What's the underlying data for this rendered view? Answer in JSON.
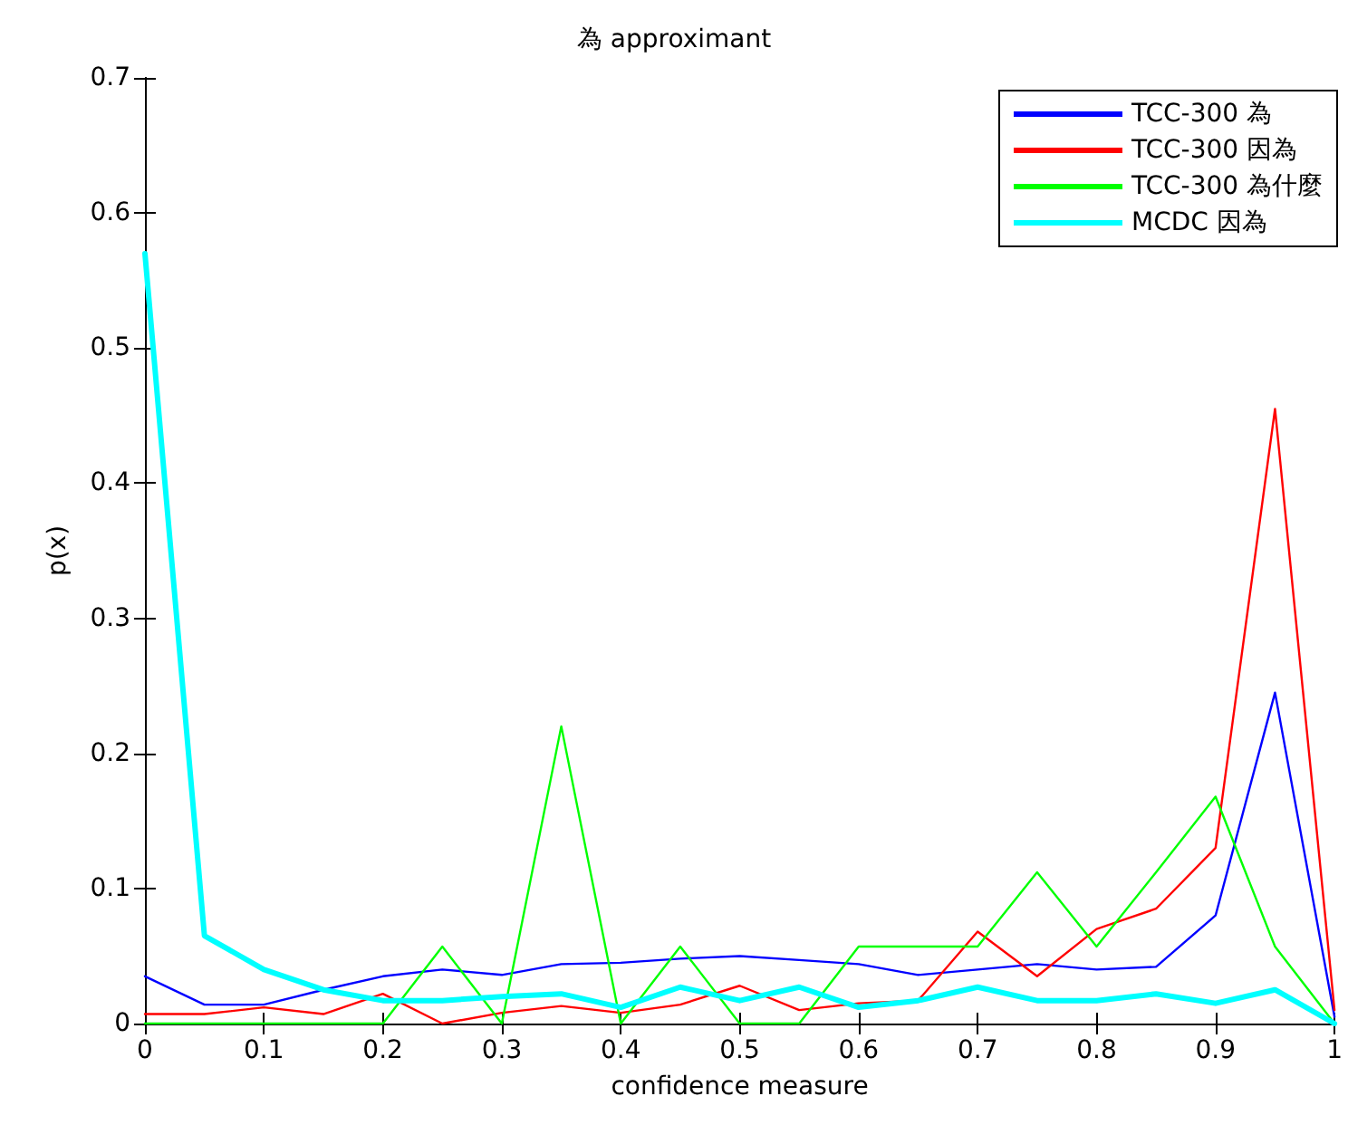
{
  "chart_data": {
    "type": "line",
    "title": "為 approximant",
    "xlabel": "confidence measure",
    "ylabel": "p(x)",
    "x": [
      0,
      0.05,
      0.1,
      0.15,
      0.2,
      0.25,
      0.3,
      0.35,
      0.4,
      0.45,
      0.5,
      0.55,
      0.6,
      0.65,
      0.7,
      0.75,
      0.8,
      0.85,
      0.9,
      0.95,
      1
    ],
    "series": [
      {
        "name": "TCC-300 為",
        "color": "#0000ff",
        "values": [
          0.035,
          0.014,
          0.014,
          0.025,
          0.035,
          0.04,
          0.036,
          0.044,
          0.045,
          0.048,
          0.05,
          0.047,
          0.044,
          0.036,
          0.04,
          0.044,
          0.04,
          0.042,
          0.08,
          0.245,
          0.005
        ]
      },
      {
        "name": "TCC-300 因為",
        "color": "#ff0000",
        "values": [
          0.007,
          0.007,
          0.012,
          0.007,
          0.022,
          0,
          0.008,
          0.013,
          0.008,
          0.014,
          0.028,
          0.01,
          0.015,
          0.017,
          0.068,
          0.035,
          0.07,
          0.085,
          0.13,
          0.455,
          0.01
        ]
      },
      {
        "name": "TCC-300 為什麼",
        "color": "#00ff00",
        "values": [
          0,
          0,
          0,
          0,
          0,
          0.057,
          0,
          0.22,
          0,
          0.057,
          0,
          0,
          0.057,
          0.057,
          0.057,
          0.112,
          0.057,
          0.112,
          0.168,
          0.057,
          0
        ]
      },
      {
        "name": "MCDC 因為",
        "color": "#00ffff",
        "values": [
          0.57,
          0.065,
          0.04,
          0.025,
          0.017,
          0.017,
          0.02,
          0.022,
          0.012,
          0.027,
          0.017,
          0.027,
          0.012,
          0.017,
          0.027,
          0.017,
          0.017,
          0.022,
          0.015,
          0.025,
          0
        ]
      }
    ],
    "xlim": [
      0,
      1
    ],
    "xticks": [
      0,
      0.1,
      0.2,
      0.3,
      0.4,
      0.5,
      0.6,
      0.7,
      0.8,
      0.9,
      1
    ],
    "ylim": [
      0,
      0.7
    ],
    "yticks": [
      0,
      0.1,
      0.2,
      0.3,
      0.4,
      0.5,
      0.6,
      0.7
    ],
    "grid": false,
    "legend": "top right",
    "marker": "none",
    "line_style": "solid"
  }
}
